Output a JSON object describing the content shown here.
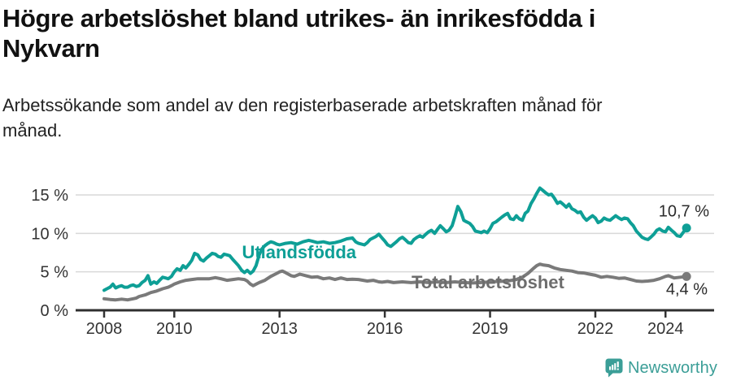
{
  "header": {
    "title_lines": [
      "Högre arbetslöshet bland utrikes- än inrikesfödda i",
      "Nykvarn"
    ],
    "subtitle_lines": [
      "Arbetssökande som andel av den registerbaserade arbetskraften månad för",
      "månad."
    ]
  },
  "footer": {
    "brand": "Newsworthy"
  },
  "colors": {
    "accent_teal": "#0e9f96",
    "series_gray": "#7a7a7a",
    "label_gray": "#6d6d6d",
    "value_text": "#2b2b2b",
    "tick_text": "#333333",
    "grid": "#d9d9d9",
    "axis": "#2f2f2f",
    "logo_teal": "#3b9e97"
  },
  "chart_data": {
    "type": "line",
    "x_unit": "decimal_year_monthly",
    "x_range": [
      2008.0,
      2024.6
    ],
    "ylim": [
      0,
      16.5
    ],
    "grid": "horizontal",
    "y_ticks": [
      {
        "value": 0,
        "label": "0 %"
      },
      {
        "value": 5,
        "label": "5 %"
      },
      {
        "value": 10,
        "label": "10 %"
      },
      {
        "value": 15,
        "label": "15 %"
      }
    ],
    "x_ticks": [
      {
        "value": 2008,
        "label": "2008"
      },
      {
        "value": 2010,
        "label": "2010"
      },
      {
        "value": 2013,
        "label": "2013"
      },
      {
        "value": 2016,
        "label": "2016"
      },
      {
        "value": 2019,
        "label": "2019"
      },
      {
        "value": 2022,
        "label": "2022"
      },
      {
        "value": 2024,
        "label": "2024"
      }
    ],
    "series": [
      {
        "name": "Utlandsfödda",
        "color": "#0e9f96",
        "end_label": "10,7 %",
        "last_value": 10.7,
        "points": [
          [
            2008.0,
            2.6
          ],
          [
            2008.08,
            2.8
          ],
          [
            2008.17,
            3.0
          ],
          [
            2008.25,
            3.4
          ],
          [
            2008.33,
            2.9
          ],
          [
            2008.42,
            3.1
          ],
          [
            2008.5,
            3.2
          ],
          [
            2008.58,
            3.0
          ],
          [
            2008.67,
            3.0
          ],
          [
            2008.75,
            3.2
          ],
          [
            2008.83,
            3.3
          ],
          [
            2008.92,
            3.1
          ],
          [
            2009.0,
            3.2
          ],
          [
            2009.08,
            3.6
          ],
          [
            2009.17,
            3.9
          ],
          [
            2009.25,
            4.5
          ],
          [
            2009.33,
            3.4
          ],
          [
            2009.42,
            3.7
          ],
          [
            2009.5,
            3.5
          ],
          [
            2009.58,
            3.9
          ],
          [
            2009.67,
            4.3
          ],
          [
            2009.75,
            4.2
          ],
          [
            2009.83,
            4.1
          ],
          [
            2009.92,
            4.4
          ],
          [
            2010.0,
            5.0
          ],
          [
            2010.08,
            5.4
          ],
          [
            2010.17,
            5.2
          ],
          [
            2010.25,
            5.8
          ],
          [
            2010.33,
            5.5
          ],
          [
            2010.42,
            6.0
          ],
          [
            2010.5,
            6.5
          ],
          [
            2010.58,
            7.4
          ],
          [
            2010.67,
            7.2
          ],
          [
            2010.75,
            6.6
          ],
          [
            2010.83,
            6.4
          ],
          [
            2010.92,
            6.8
          ],
          [
            2011.0,
            7.1
          ],
          [
            2011.08,
            7.4
          ],
          [
            2011.17,
            7.3
          ],
          [
            2011.25,
            7.0
          ],
          [
            2011.33,
            6.9
          ],
          [
            2011.42,
            7.3
          ],
          [
            2011.5,
            7.2
          ],
          [
            2011.58,
            7.1
          ],
          [
            2011.67,
            6.6
          ],
          [
            2011.75,
            6.2
          ],
          [
            2011.83,
            5.8
          ],
          [
            2011.92,
            5.2
          ],
          [
            2012.0,
            4.9
          ],
          [
            2012.08,
            5.2
          ],
          [
            2012.17,
            4.8
          ],
          [
            2012.25,
            5.1
          ],
          [
            2012.33,
            5.8
          ],
          [
            2012.42,
            7.2
          ],
          [
            2012.5,
            8.0
          ],
          [
            2012.58,
            8.4
          ],
          [
            2012.67,
            8.7
          ],
          [
            2012.75,
            8.9
          ],
          [
            2012.83,
            8.8
          ],
          [
            2012.92,
            8.6
          ],
          [
            2013.0,
            8.5
          ],
          [
            2013.17,
            8.7
          ],
          [
            2013.33,
            8.8
          ],
          [
            2013.5,
            8.6
          ],
          [
            2013.67,
            8.9
          ],
          [
            2013.83,
            9.1
          ],
          [
            2013.92,
            9.0
          ],
          [
            2014.08,
            8.8
          ],
          [
            2014.25,
            8.9
          ],
          [
            2014.42,
            8.7
          ],
          [
            2014.58,
            8.8
          ],
          [
            2014.75,
            9.0
          ],
          [
            2014.92,
            9.3
          ],
          [
            2015.08,
            9.4
          ],
          [
            2015.17,
            8.9
          ],
          [
            2015.25,
            8.7
          ],
          [
            2015.42,
            8.5
          ],
          [
            2015.5,
            8.8
          ],
          [
            2015.58,
            9.2
          ],
          [
            2015.75,
            9.6
          ],
          [
            2015.83,
            9.9
          ],
          [
            2015.92,
            9.4
          ],
          [
            2016.0,
            9.0
          ],
          [
            2016.08,
            8.5
          ],
          [
            2016.17,
            8.3
          ],
          [
            2016.33,
            8.9
          ],
          [
            2016.42,
            9.3
          ],
          [
            2016.5,
            9.5
          ],
          [
            2016.58,
            9.2
          ],
          [
            2016.67,
            8.8
          ],
          [
            2016.75,
            8.7
          ],
          [
            2016.83,
            9.2
          ],
          [
            2016.92,
            9.5
          ],
          [
            2017.0,
            9.7
          ],
          [
            2017.08,
            9.5
          ],
          [
            2017.17,
            9.9
          ],
          [
            2017.25,
            10.2
          ],
          [
            2017.33,
            10.4
          ],
          [
            2017.42,
            10.0
          ],
          [
            2017.5,
            10.5
          ],
          [
            2017.58,
            11.0
          ],
          [
            2017.67,
            10.6
          ],
          [
            2017.75,
            10.2
          ],
          [
            2017.83,
            10.4
          ],
          [
            2017.92,
            11.0
          ],
          [
            2018.0,
            12.2
          ],
          [
            2018.08,
            13.5
          ],
          [
            2018.17,
            12.8
          ],
          [
            2018.25,
            11.7
          ],
          [
            2018.33,
            11.5
          ],
          [
            2018.42,
            11.3
          ],
          [
            2018.5,
            10.9
          ],
          [
            2018.58,
            10.3
          ],
          [
            2018.67,
            10.2
          ],
          [
            2018.75,
            10.1
          ],
          [
            2018.83,
            10.3
          ],
          [
            2018.92,
            10.1
          ],
          [
            2019.0,
            10.6
          ],
          [
            2019.08,
            11.3
          ],
          [
            2019.17,
            11.5
          ],
          [
            2019.25,
            11.8
          ],
          [
            2019.33,
            12.1
          ],
          [
            2019.42,
            12.4
          ],
          [
            2019.5,
            12.6
          ],
          [
            2019.58,
            11.9
          ],
          [
            2019.67,
            11.8
          ],
          [
            2019.75,
            12.3
          ],
          [
            2019.83,
            11.9
          ],
          [
            2019.92,
            11.7
          ],
          [
            2020.0,
            12.6
          ],
          [
            2020.08,
            12.9
          ],
          [
            2020.17,
            13.9
          ],
          [
            2020.25,
            14.5
          ],
          [
            2020.33,
            15.2
          ],
          [
            2020.42,
            15.9
          ],
          [
            2020.5,
            15.6
          ],
          [
            2020.58,
            15.3
          ],
          [
            2020.67,
            15.0
          ],
          [
            2020.75,
            15.1
          ],
          [
            2020.83,
            14.6
          ],
          [
            2020.92,
            13.9
          ],
          [
            2021.0,
            14.1
          ],
          [
            2021.08,
            13.8
          ],
          [
            2021.17,
            13.4
          ],
          [
            2021.25,
            13.8
          ],
          [
            2021.33,
            13.2
          ],
          [
            2021.42,
            13.0
          ],
          [
            2021.5,
            12.7
          ],
          [
            2021.58,
            12.8
          ],
          [
            2021.67,
            12.1
          ],
          [
            2021.75,
            11.7
          ],
          [
            2021.83,
            12.0
          ],
          [
            2021.92,
            12.3
          ],
          [
            2022.0,
            12.0
          ],
          [
            2022.08,
            11.4
          ],
          [
            2022.17,
            11.6
          ],
          [
            2022.25,
            12.0
          ],
          [
            2022.33,
            11.8
          ],
          [
            2022.42,
            11.7
          ],
          [
            2022.5,
            12.0
          ],
          [
            2022.58,
            12.3
          ],
          [
            2022.67,
            12.0
          ],
          [
            2022.75,
            11.8
          ],
          [
            2022.83,
            12.0
          ],
          [
            2022.92,
            11.9
          ],
          [
            2023.0,
            11.4
          ],
          [
            2023.08,
            11.0
          ],
          [
            2023.17,
            10.3
          ],
          [
            2023.25,
            9.9
          ],
          [
            2023.33,
            9.5
          ],
          [
            2023.42,
            9.3
          ],
          [
            2023.5,
            9.2
          ],
          [
            2023.58,
            9.5
          ],
          [
            2023.67,
            9.9
          ],
          [
            2023.75,
            10.4
          ],
          [
            2023.83,
            10.6
          ],
          [
            2023.92,
            10.3
          ],
          [
            2024.0,
            10.2
          ],
          [
            2024.08,
            10.8
          ],
          [
            2024.17,
            10.4
          ],
          [
            2024.25,
            10.1
          ],
          [
            2024.33,
            9.7
          ],
          [
            2024.42,
            9.6
          ],
          [
            2024.5,
            10.1
          ],
          [
            2024.6,
            10.7
          ]
        ]
      },
      {
        "name": "Total arbetslöshet",
        "color": "#7a7a7a",
        "end_label": "4,4 %",
        "last_value": 4.4,
        "points": [
          [
            2008.0,
            1.5
          ],
          [
            2008.17,
            1.4
          ],
          [
            2008.33,
            1.35
          ],
          [
            2008.5,
            1.45
          ],
          [
            2008.67,
            1.35
          ],
          [
            2008.83,
            1.5
          ],
          [
            2008.92,
            1.6
          ],
          [
            2009.0,
            1.8
          ],
          [
            2009.17,
            2.0
          ],
          [
            2009.33,
            2.3
          ],
          [
            2009.5,
            2.5
          ],
          [
            2009.67,
            2.8
          ],
          [
            2009.83,
            3.0
          ],
          [
            2009.92,
            3.2
          ],
          [
            2010.0,
            3.4
          ],
          [
            2010.17,
            3.7
          ],
          [
            2010.33,
            3.9
          ],
          [
            2010.5,
            4.0
          ],
          [
            2010.67,
            4.1
          ],
          [
            2010.83,
            4.1
          ],
          [
            2011.0,
            4.1
          ],
          [
            2011.17,
            4.25
          ],
          [
            2011.33,
            4.1
          ],
          [
            2011.5,
            3.9
          ],
          [
            2011.67,
            4.0
          ],
          [
            2011.83,
            4.1
          ],
          [
            2012.0,
            4.0
          ],
          [
            2012.08,
            3.8
          ],
          [
            2012.17,
            3.4
          ],
          [
            2012.25,
            3.2
          ],
          [
            2012.42,
            3.6
          ],
          [
            2012.58,
            3.9
          ],
          [
            2012.75,
            4.4
          ],
          [
            2012.92,
            4.8
          ],
          [
            2013.0,
            5.0
          ],
          [
            2013.08,
            5.1
          ],
          [
            2013.17,
            4.9
          ],
          [
            2013.33,
            4.5
          ],
          [
            2013.42,
            4.4
          ],
          [
            2013.58,
            4.7
          ],
          [
            2013.75,
            4.5
          ],
          [
            2013.92,
            4.3
          ],
          [
            2014.08,
            4.35
          ],
          [
            2014.25,
            4.1
          ],
          [
            2014.42,
            4.2
          ],
          [
            2014.58,
            4.0
          ],
          [
            2014.75,
            4.2
          ],
          [
            2014.92,
            4.0
          ],
          [
            2015.08,
            4.05
          ],
          [
            2015.25,
            4.0
          ],
          [
            2015.5,
            3.8
          ],
          [
            2015.67,
            3.9
          ],
          [
            2015.83,
            3.7
          ],
          [
            2015.92,
            3.65
          ],
          [
            2016.08,
            3.75
          ],
          [
            2016.25,
            3.6
          ],
          [
            2016.5,
            3.7
          ],
          [
            2016.75,
            3.6
          ],
          [
            2017.0,
            3.7
          ],
          [
            2017.25,
            3.6
          ],
          [
            2017.5,
            3.7
          ],
          [
            2017.75,
            3.6
          ],
          [
            2018.0,
            3.7
          ],
          [
            2018.25,
            3.6
          ],
          [
            2018.5,
            3.55
          ],
          [
            2018.75,
            3.6
          ],
          [
            2019.0,
            3.7
          ],
          [
            2019.25,
            3.75
          ],
          [
            2019.5,
            3.8
          ],
          [
            2019.75,
            4.0
          ],
          [
            2019.92,
            4.3
          ],
          [
            2020.08,
            4.8
          ],
          [
            2020.25,
            5.5
          ],
          [
            2020.33,
            5.8
          ],
          [
            2020.42,
            6.0
          ],
          [
            2020.5,
            5.9
          ],
          [
            2020.67,
            5.8
          ],
          [
            2020.83,
            5.5
          ],
          [
            2021.0,
            5.3
          ],
          [
            2021.17,
            5.2
          ],
          [
            2021.33,
            5.1
          ],
          [
            2021.5,
            4.9
          ],
          [
            2021.67,
            4.85
          ],
          [
            2021.83,
            4.7
          ],
          [
            2022.0,
            4.55
          ],
          [
            2022.17,
            4.3
          ],
          [
            2022.33,
            4.4
          ],
          [
            2022.5,
            4.3
          ],
          [
            2022.67,
            4.15
          ],
          [
            2022.83,
            4.2
          ],
          [
            2023.0,
            4.0
          ],
          [
            2023.17,
            3.8
          ],
          [
            2023.33,
            3.75
          ],
          [
            2023.5,
            3.8
          ],
          [
            2023.67,
            3.9
          ],
          [
            2023.83,
            4.1
          ],
          [
            2024.0,
            4.4
          ],
          [
            2024.08,
            4.5
          ],
          [
            2024.25,
            4.2
          ],
          [
            2024.42,
            4.3
          ],
          [
            2024.6,
            4.4
          ]
        ]
      }
    ]
  }
}
